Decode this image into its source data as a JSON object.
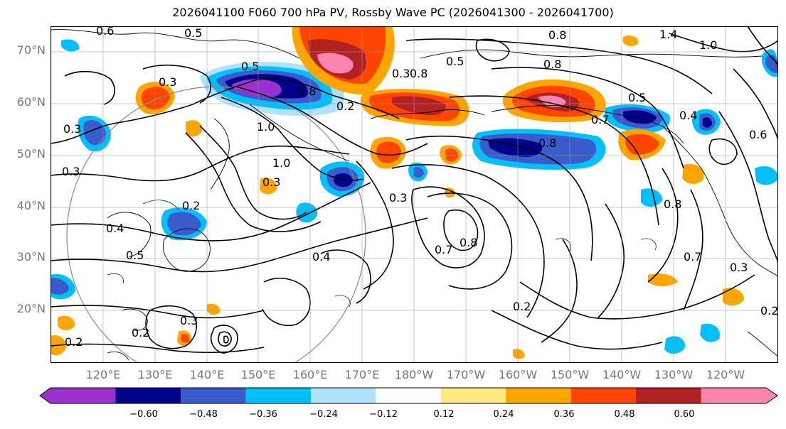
{
  "title": "2026041100 F060 700 hPa PV, Rossby Wave PC (2026041300 - 2026041700)",
  "lat_labels": [
    "70°N",
    "60°N",
    "50°N",
    "40°N",
    "30°N",
    "20°N"
  ],
  "lon_labels": [
    "120°E",
    "130°E",
    "140°E",
    "150°E",
    "160°E",
    "170°E",
    "180°W",
    "170°W",
    "160°W",
    "150°W",
    "140°W",
    "130°W",
    "120°W"
  ],
  "colorbar": {
    "ticks": [
      "−0.60",
      "−0.48",
      "−0.36",
      "−0.24",
      "−0.12",
      "0.12",
      "0.24",
      "0.36",
      "0.48",
      "0.60"
    ],
    "colors": [
      "#9932cc",
      "#00008b",
      "#3a5bcb",
      "#00bfff",
      "#b0e2ff",
      "#ffffff",
      "#ffe97f",
      "#ffa500",
      "#ff4500",
      "#b22222",
      "#ff85b0"
    ]
  },
  "contour_labels": [
    "0.6",
    "0.5",
    "0.3",
    "0.5",
    "0.8",
    "0.5",
    "0.8",
    "0.3",
    "0.2",
    "1.0",
    "1.0",
    "0.2",
    "0.3",
    "0.4",
    "0.5",
    "0.3",
    "0.7",
    "0.8",
    "0.2",
    "0.8",
    "0.5",
    "0.8",
    "0.8",
    "0.4",
    "0.7",
    "0.2",
    "0.3",
    "1.4",
    "1.0",
    "0.6",
    "0.8",
    "0.7",
    "0.3",
    "0.2",
    "0.3",
    "0.2",
    "0.3",
    "0.4"
  ]
}
